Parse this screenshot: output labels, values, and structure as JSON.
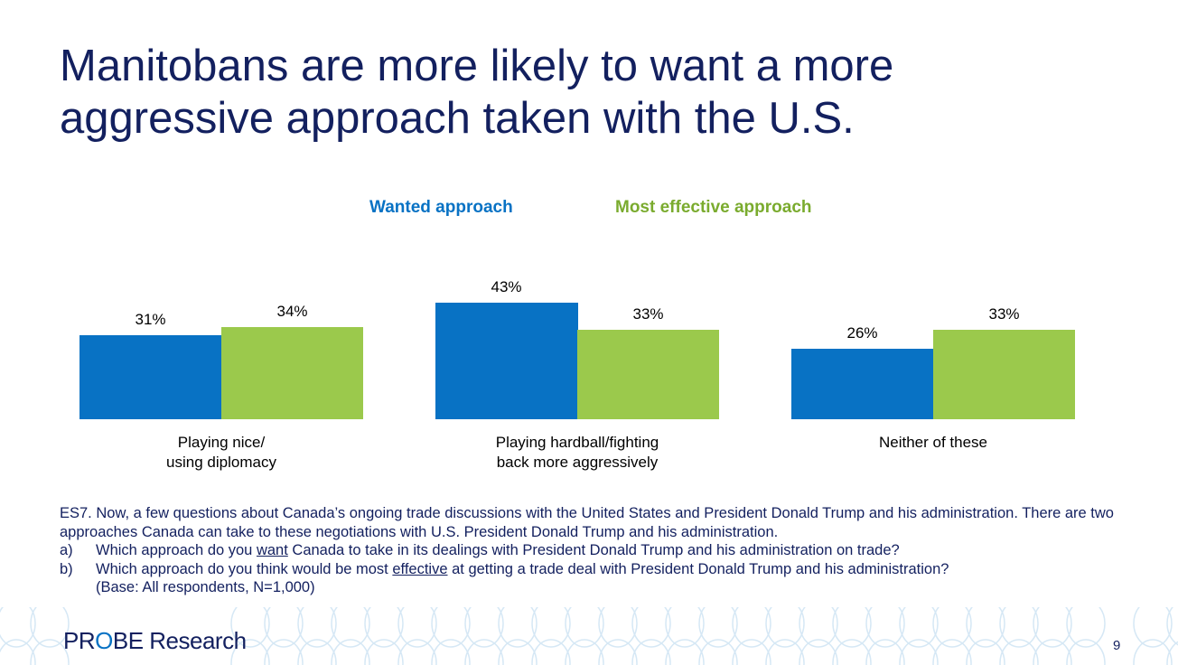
{
  "title": "Manitobans are more likely to want a more aggressive approach taken with the U.S.",
  "chart_data": {
    "type": "bar",
    "categories": [
      "Playing nice/\nusing diplomacy",
      "Playing hardball/fighting\nback more aggressively",
      "Neither of these"
    ],
    "category_lines": [
      [
        "Playing nice/",
        "using diplomacy"
      ],
      [
        "Playing hardball/fighting",
        "back more aggressively"
      ],
      [
        "Neither of these"
      ]
    ],
    "series": [
      {
        "name": "Wanted approach",
        "values": [
          31,
          43,
          26
        ],
        "labels": [
          "31%",
          "43%",
          "26%"
        ],
        "color": "#0872c4"
      },
      {
        "name": "Most effective approach",
        "values": [
          34,
          33,
          33
        ],
        "labels": [
          "34%",
          "33%",
          "33%"
        ],
        "color": "#9bc94c"
      }
    ],
    "ylim": [
      0,
      50
    ],
    "grid": false,
    "legend": "top"
  },
  "note": {
    "intro": "ES7. Now, a few questions about Canada’s ongoing trade discussions with the United States and President Donald Trump and his administration. There are two approaches Canada can take to these negotiations with U.S. President Donald Trump and his administration.",
    "a_label": "a)",
    "a_pre": "Which approach do you ",
    "a_em": "want",
    "a_post": " Canada to take in its dealings with President Donald Trump and his administration on trade?",
    "b_label": "b)",
    "b_pre": "Which approach do you think would be most ",
    "b_em": "effective",
    "b_post": " at getting a trade deal with President Donald Trump and his administration?",
    "base": "(Base: All respondents, N=1,000)"
  },
  "logo": {
    "pre": "PR",
    "o": "O",
    "post": "BE Research"
  },
  "page_number": "9"
}
